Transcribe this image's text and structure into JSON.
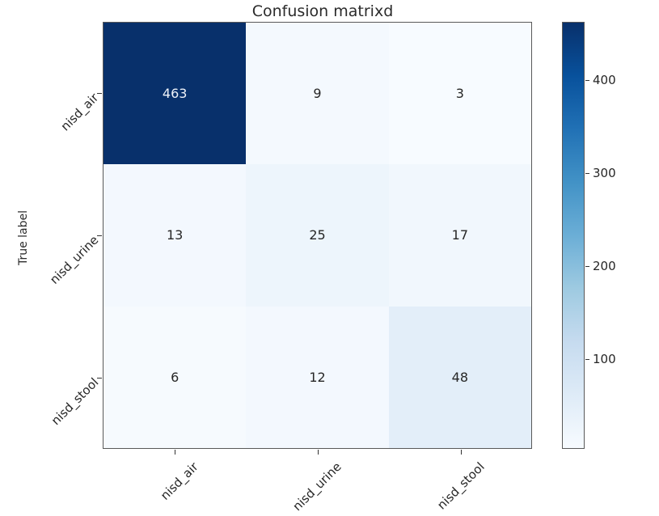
{
  "chart_data": {
    "type": "heatmap",
    "title": "Confusion matrixd",
    "xlabel": "",
    "ylabel": "True label",
    "row_labels": [
      "nisd_air",
      "nisd_urine",
      "nisd_stool"
    ],
    "col_labels": [
      "nisd_air",
      "nisd_urine",
      "nisd_stool"
    ],
    "matrix": [
      [
        463,
        9,
        3
      ],
      [
        13,
        25,
        17
      ],
      [
        6,
        12,
        48
      ]
    ],
    "vmin": 3,
    "vmax": 463,
    "colormap": "Blues",
    "colorbar_ticks": [
      400,
      300,
      200,
      100
    ],
    "colorbar_position": "right",
    "grid": false,
    "cell_colors": [
      [
        "#08306b",
        "#f4f9fe",
        "#f7fbff"
      ],
      [
        "#f3f8fe",
        "#edf5fc",
        "#f1f7fd"
      ],
      [
        "#f6fafe",
        "#f3f8fe",
        "#e3eef9"
      ]
    ],
    "cell_text_colors": [
      [
        "#eef2f9",
        "#262626",
        "#262626"
      ],
      [
        "#262626",
        "#262626",
        "#262626"
      ],
      [
        "#262626",
        "#262626",
        "#262626"
      ]
    ]
  },
  "colors": {
    "background": "#ffffff",
    "axis_spine": "#595959",
    "tick_mark": "#333333",
    "tick_text": "#262626",
    "title_text": "#2b2b2b",
    "colorbar_gradient": [
      "#08306b",
      "#08519c",
      "#2171b5",
      "#4292c6",
      "#6baed6",
      "#9ecae1",
      "#c6dbef",
      "#deebf7",
      "#f7fbff"
    ]
  }
}
